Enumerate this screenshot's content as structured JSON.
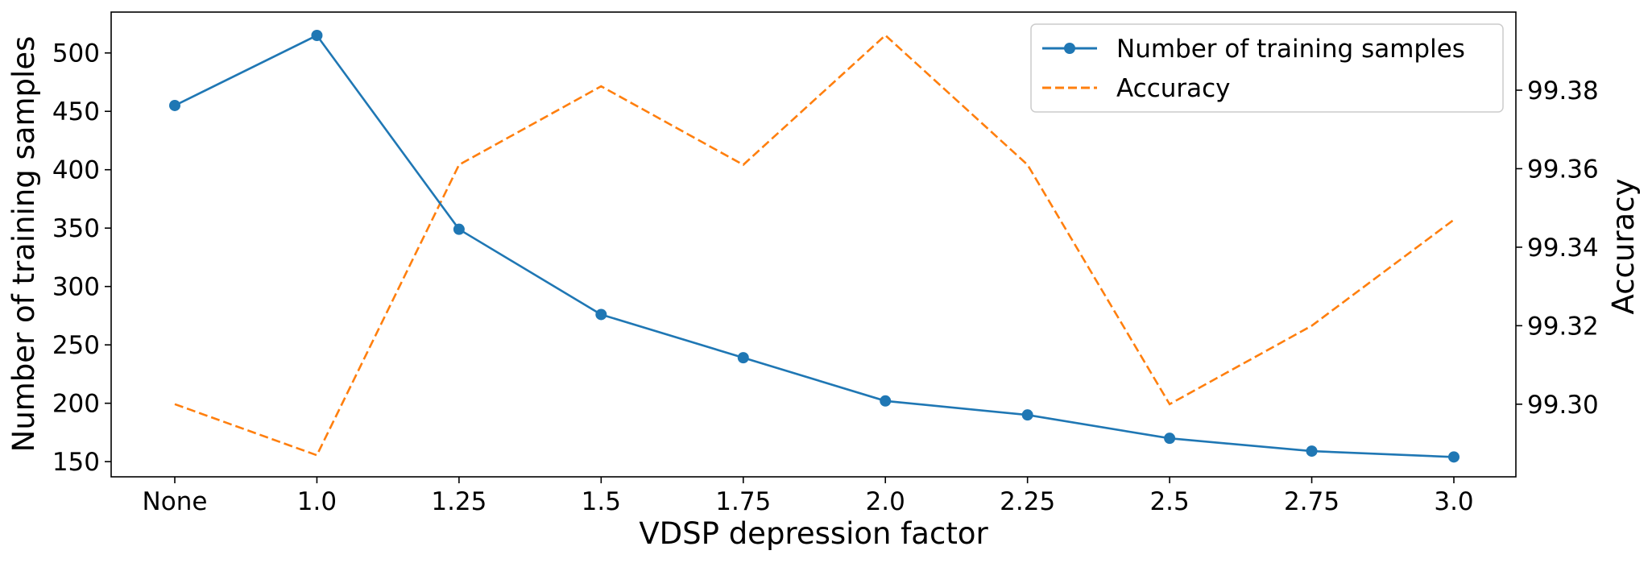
{
  "chart_data": {
    "type": "line",
    "categories": [
      "None",
      "1.0",
      "1.25",
      "1.5",
      "1.75",
      "2.0",
      "2.25",
      "2.5",
      "2.75",
      "3.0"
    ],
    "xlabel": "VDSP depression factor",
    "ylabel": "Number of training samples",
    "ylabel_right": "Accuracy",
    "ylim": [
      137,
      535
    ],
    "ylim_right": [
      99.2815,
      99.3999
    ],
    "yticks": [
      "150",
      "200",
      "250",
      "300",
      "350",
      "400",
      "450",
      "500"
    ],
    "yticks_right": [
      "99.30",
      "99.32",
      "99.34",
      "99.36",
      "99.38"
    ],
    "grid": false,
    "legend_position": "top-right",
    "series": [
      {
        "name": "Number of training samples",
        "axis": "left",
        "style": "solid",
        "marker": "circle",
        "color": "#1f77b4",
        "values": [
          455,
          515,
          349,
          276,
          239,
          202,
          190,
          170,
          159,
          154
        ]
      },
      {
        "name": "Accuracy",
        "axis": "right",
        "style": "dashed",
        "marker": "none",
        "color": "#ff7f0e",
        "values": [
          99.3,
          99.287,
          99.361,
          99.381,
          99.361,
          99.394,
          99.361,
          99.3,
          99.32,
          99.347
        ]
      }
    ]
  }
}
